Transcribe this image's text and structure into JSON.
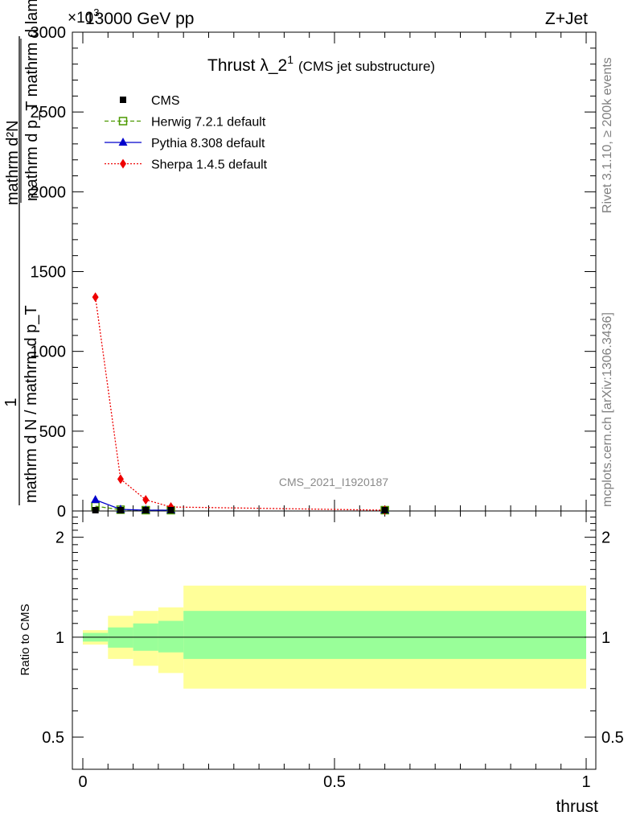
{
  "header": {
    "left": "13000 GeV pp",
    "right": "Z+Jet",
    "multiplier": "×10",
    "multiplier_exp": "3"
  },
  "title": {
    "main": "Thrust λ_2",
    "sup": "1",
    "sub": "(CMS jet substructure)"
  },
  "watermark": "CMS_2021_I1920187",
  "side_texts": {
    "rivet": "Rivet 3.1.10, ≥ 200k events",
    "mcplots": "mcplots.cern.ch [arXiv:1306.3436]"
  },
  "ylabel": {
    "numerator": "1",
    "denominator": "mathrm d N / mathrm d p_T",
    "fraction_num": "mathrm d²N",
    "fraction_den": "mathrm d p_T mathrm d lambda"
  },
  "ratio_ylabel": "Ratio to CMS",
  "xlabel": "thrust",
  "legend": [
    {
      "label": "CMS",
      "color": "#000000",
      "marker": "square-filled",
      "dash": ""
    },
    {
      "label": "Herwig 7.2.1 default",
      "color": "#4c9900",
      "marker": "square-open",
      "dash": "5,3"
    },
    {
      "label": "Pythia 8.308 default",
      "color": "#0000cc",
      "marker": "triangle",
      "dash": ""
    },
    {
      "label": "Sherpa 1.4.5 default",
      "color": "#ee0000",
      "marker": "diamond",
      "dash": "2,2"
    }
  ],
  "chart_data": {
    "type": "line",
    "title": "Thrust λ_2^1 (CMS jet substructure)",
    "xlabel": "thrust",
    "ylabel": "1/(dN/dp_T) d²N/(dp_T dλ)",
    "xlim": [
      0,
      1
    ],
    "ylim": [
      0,
      3000
    ],
    "y_scale_note": "×10^3",
    "main_y_ticks": [
      0,
      500,
      1000,
      1500,
      2000,
      2500,
      3000
    ],
    "x_ticks": [
      0,
      0.5,
      1
    ],
    "x_tick_labels": [
      "0",
      "0.5",
      "1"
    ],
    "series": [
      {
        "name": "CMS",
        "x": [
          0.025,
          0.075,
          0.125,
          0.175,
          0.6
        ],
        "y": [
          5,
          3,
          2,
          1,
          1
        ]
      },
      {
        "name": "Herwig 7.2.1 default",
        "x": [
          0.025,
          0.075,
          0.125,
          0.175,
          0.6
        ],
        "y": [
          30,
          8,
          2,
          1,
          0.5
        ]
      },
      {
        "name": "Pythia 8.308 default",
        "x": [
          0.025,
          0.075,
          0.125,
          0.175,
          0.6
        ],
        "y": [
          70,
          10,
          2,
          1,
          0.5
        ]
      },
      {
        "name": "Sherpa 1.4.5 default",
        "x": [
          0.025,
          0.075,
          0.125,
          0.175,
          0.6
        ],
        "y": [
          1340,
          200,
          70,
          25,
          3
        ]
      }
    ],
    "ratio": {
      "ylabel": "Ratio to CMS",
      "ylim_log": [
        0.4,
        2.4
      ],
      "y_ticks": [
        0.5,
        1,
        2
      ],
      "y_tick_labels": [
        "0.5",
        "1",
        "2"
      ],
      "bins": [
        {
          "x0": 0.0,
          "x1": 0.05,
          "inner": [
            0.97,
            1.03
          ],
          "outer": [
            0.95,
            1.05
          ]
        },
        {
          "x0": 0.05,
          "x1": 0.1,
          "inner": [
            0.93,
            1.07
          ],
          "outer": [
            0.86,
            1.16
          ]
        },
        {
          "x0": 0.1,
          "x1": 0.15,
          "inner": [
            0.91,
            1.1
          ],
          "outer": [
            0.82,
            1.2
          ]
        },
        {
          "x0": 0.15,
          "x1": 0.2,
          "inner": [
            0.9,
            1.12
          ],
          "outer": [
            0.78,
            1.23
          ]
        },
        {
          "x0": 0.2,
          "x1": 1.0,
          "inner": [
            0.86,
            1.2
          ],
          "outer": [
            0.7,
            1.43
          ]
        }
      ]
    }
  }
}
